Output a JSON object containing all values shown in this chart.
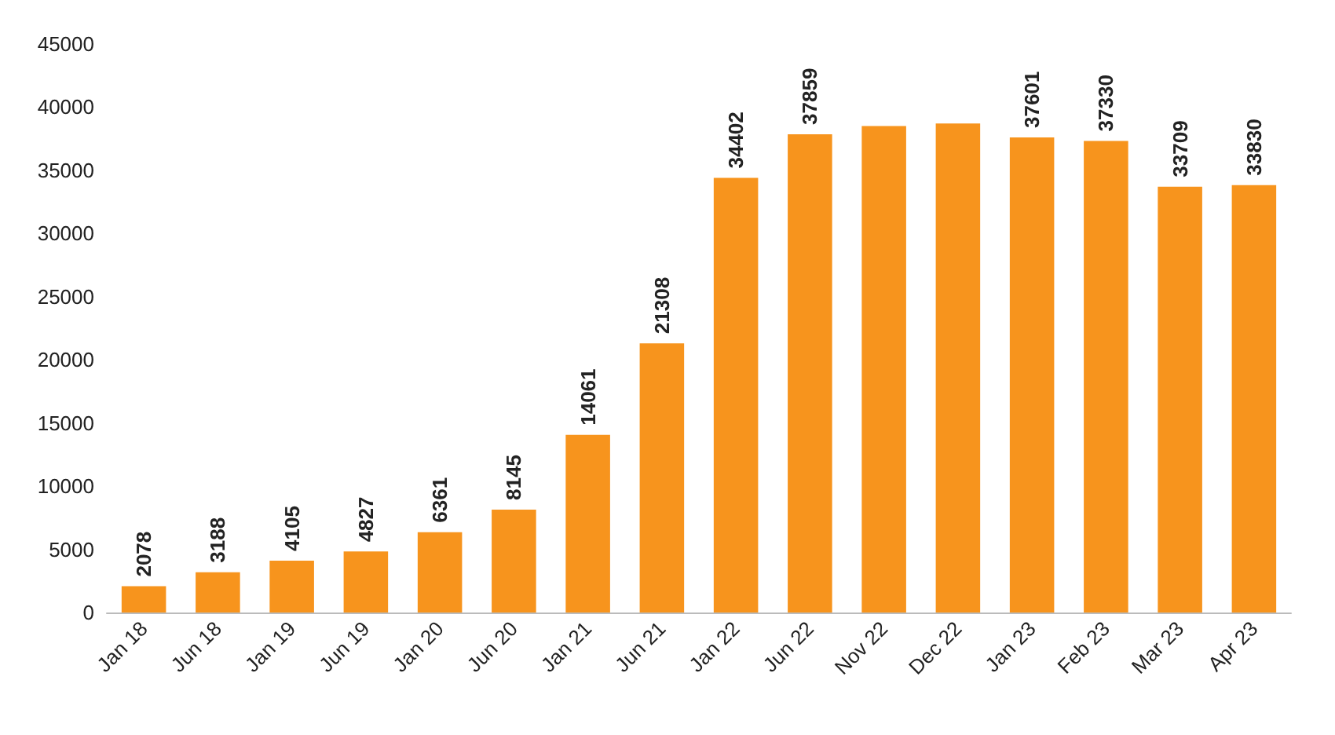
{
  "chart_data": {
    "type": "bar",
    "categories": [
      "Jan 18",
      "Jun 18",
      "Jan 19",
      "Jun 19",
      "Jan 20",
      "Jun 20",
      "Jan 21",
      "Jun 21",
      "Jan 22",
      "Jun 22",
      "Nov 22",
      "Dec 22",
      "Jan 23",
      "Feb 23",
      "Mar 23",
      "Apr 23"
    ],
    "values": [
      2078,
      3188,
      4105,
      4827,
      6361,
      8145,
      14061,
      21308,
      34402,
      37859,
      38500,
      38700,
      37601,
      37330,
      33709,
      33830
    ],
    "value_labels": [
      "2078",
      "3188",
      "4105",
      "4827",
      "6361",
      "8145",
      "14061",
      "21308",
      "34402",
      "37859",
      null,
      null,
      "37601",
      "37330",
      "33709",
      "33830"
    ],
    "color": "#f7941d",
    "ylim": [
      0,
      45000
    ],
    "yticks": [
      0,
      5000,
      10000,
      15000,
      20000,
      25000,
      30000,
      35000,
      40000,
      45000
    ],
    "grid": false
  }
}
